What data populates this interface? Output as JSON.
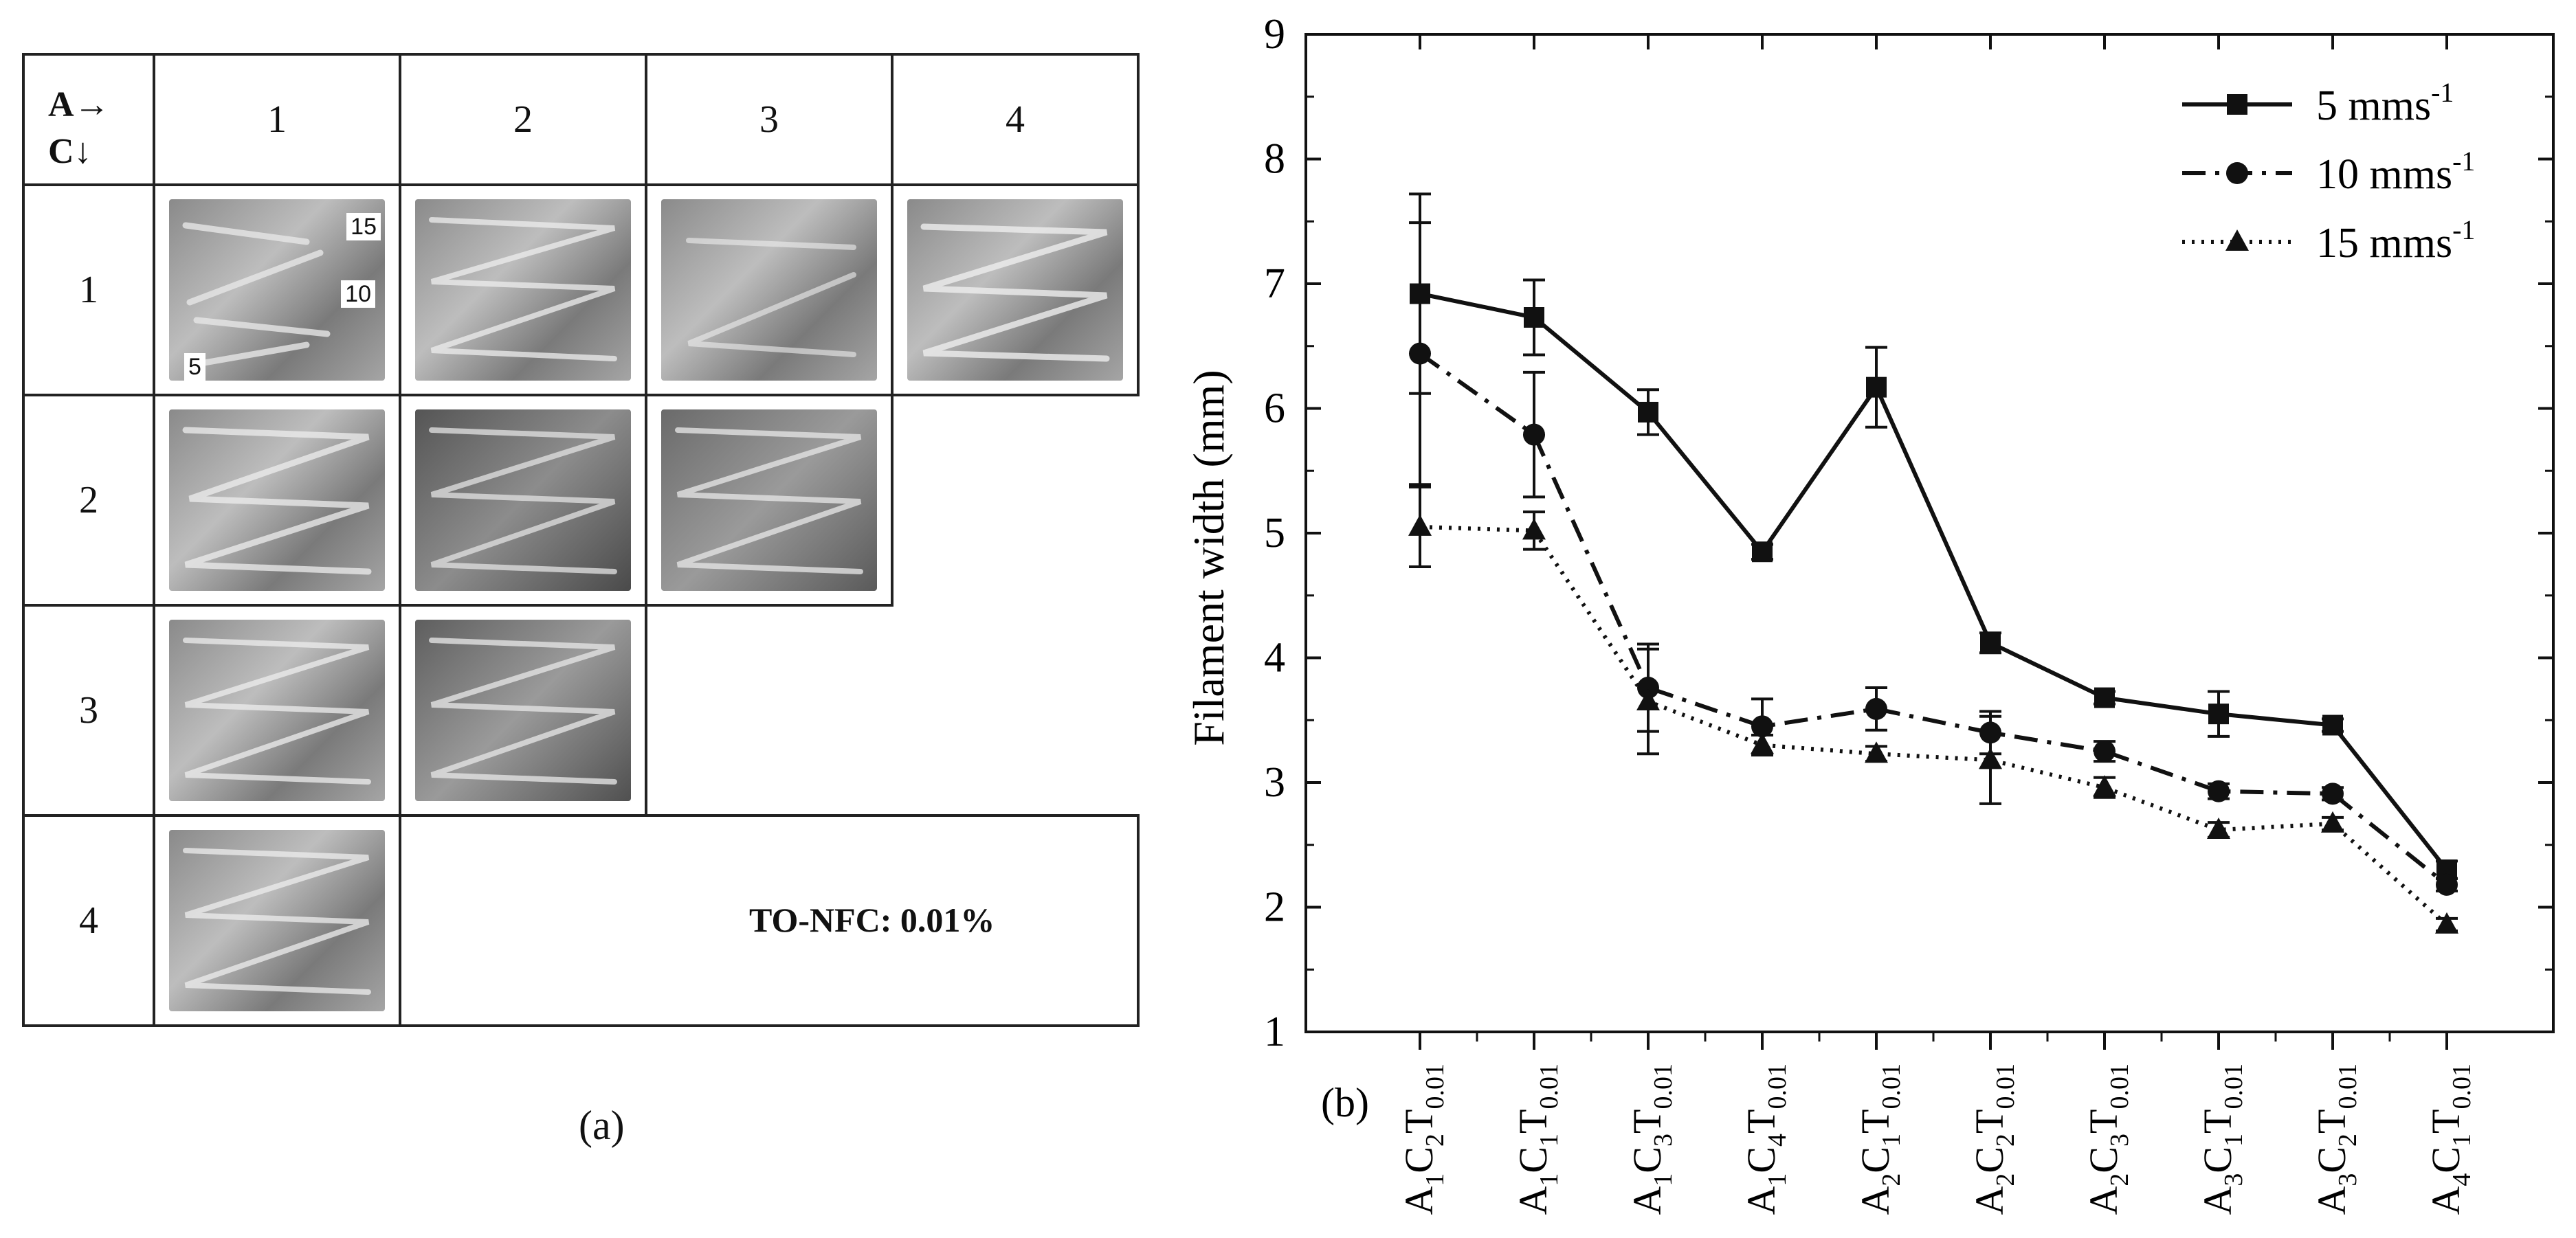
{
  "panel_a": {
    "corner_a": "A→",
    "corner_c": "C↓",
    "col_headers": [
      "1",
      "2",
      "3",
      "4"
    ],
    "row_headers": [
      "1",
      "2",
      "3",
      "4"
    ],
    "speed_tags": [
      "15",
      "10",
      "5"
    ],
    "note": "TO-NFC: 0.01%",
    "caption": "(a)"
  },
  "chart_data": {
    "type": "line",
    "panel_label": "(b)",
    "title": "",
    "xlabel": "",
    "ylabel": "Filament width (mm)",
    "ylim": [
      1,
      9
    ],
    "yticks": [
      "1",
      "2",
      "3",
      "4",
      "5",
      "6",
      "7",
      "8",
      "9"
    ],
    "grid": false,
    "legend_position": "top-right",
    "categories": [
      {
        "a": "1",
        "c": "2",
        "t": "0.01"
      },
      {
        "a": "1",
        "c": "1",
        "t": "0.01"
      },
      {
        "a": "1",
        "c": "3",
        "t": "0.01"
      },
      {
        "a": "1",
        "c": "4",
        "t": "0.01"
      },
      {
        "a": "2",
        "c": "1",
        "t": "0.01"
      },
      {
        "a": "2",
        "c": "2",
        "t": "0.01"
      },
      {
        "a": "2",
        "c": "3",
        "t": "0.01"
      },
      {
        "a": "3",
        "c": "1",
        "t": "0.01"
      },
      {
        "a": "3",
        "c": "2",
        "t": "0.01"
      },
      {
        "a": "4",
        "c": "1",
        "t": "0.01"
      }
    ],
    "series": [
      {
        "name": "5 mms",
        "sup": "-1",
        "marker": "square",
        "dash": "solid",
        "values": [
          6.92,
          6.73,
          5.97,
          4.85,
          6.17,
          4.12,
          3.68,
          3.55,
          3.46,
          2.3
        ],
        "errors": [
          0.8,
          0.3,
          0.18,
          0.06,
          0.32,
          0.08,
          0.05,
          0.18,
          0.05,
          0.07
        ]
      },
      {
        "name": "10 mms",
        "sup": "-1",
        "marker": "circle",
        "dash": "dashdot",
        "values": [
          6.44,
          5.79,
          3.76,
          3.45,
          3.59,
          3.4,
          3.25,
          2.93,
          2.91,
          2.18
        ],
        "errors": [
          1.05,
          0.5,
          0.35,
          0.22,
          0.17,
          0.17,
          0.08,
          0.06,
          0.05,
          0.05
        ]
      },
      {
        "name": "15 mms",
        "sup": "-1",
        "marker": "triangle",
        "dash": "dot",
        "values": [
          5.05,
          5.02,
          3.65,
          3.3,
          3.23,
          3.18,
          2.96,
          2.62,
          2.67,
          1.86
        ],
        "errors": [
          0.32,
          0.15,
          0.42,
          0.08,
          0.06,
          0.35,
          0.08,
          0.06,
          0.05,
          0.05
        ]
      }
    ]
  }
}
